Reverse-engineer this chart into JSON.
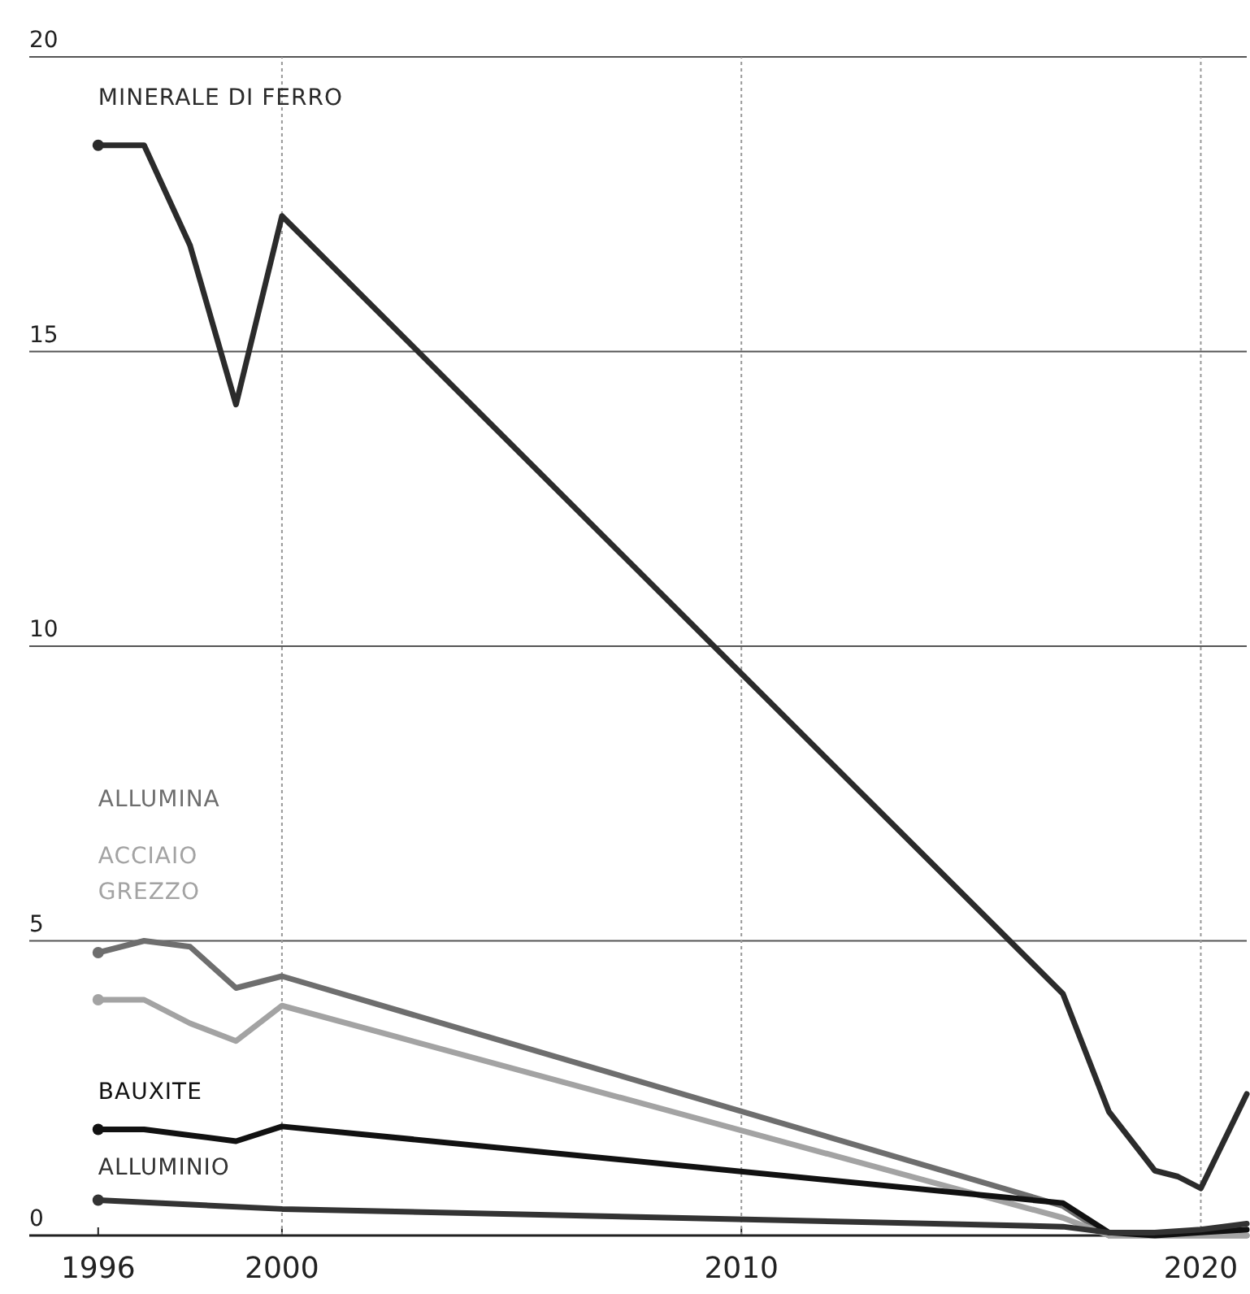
{
  "chart_data": {
    "type": "line",
    "xlim": [
      1994.5,
      2021
    ],
    "xticks": [
      1996,
      2000,
      2010,
      2020
    ],
    "ylim": [
      0,
      20
    ],
    "yticks": [
      0,
      5,
      10,
      15,
      20
    ],
    "grid": "y",
    "legend": false,
    "ref_lines": [
      {
        "axis": "x",
        "value": 2000,
        "line_style": "dotted"
      },
      {
        "axis": "x",
        "value": 2010,
        "line_style": "dotted"
      },
      {
        "axis": "x",
        "value": 2020,
        "line_style": "dotted"
      }
    ],
    "series": [
      {
        "name": "MINERALE DI FERRO",
        "color": "#2b2b2b",
        "x": [
          1996,
          1997,
          1998,
          1999,
          2000,
          2017,
          2018,
          2019,
          2019.5,
          2020,
          2021
        ],
        "values": [
          18.5,
          18.5,
          16.8,
          14.1,
          17.3,
          4.1,
          2.1,
          1.1,
          1.0,
          0.8,
          2.4
        ]
      },
      {
        "name": "ALLUMINA",
        "color": "#6e6e6e",
        "x": [
          1996,
          1997,
          1998,
          1999,
          2000,
          2017,
          2018,
          2019,
          2020,
          2021
        ],
        "values": [
          4.8,
          5.0,
          4.9,
          4.2,
          4.4,
          0.5,
          0,
          0,
          0,
          0
        ]
      },
      {
        "name": "ACCIAIO GREZZO",
        "color": "#a3a3a3",
        "x": [
          1996,
          1997,
          1998,
          1999,
          2000,
          2017,
          2018,
          2019,
          2020,
          2021
        ],
        "values": [
          4.0,
          4.0,
          3.6,
          3.3,
          3.9,
          0.3,
          0,
          0,
          0,
          0
        ]
      },
      {
        "name": "BAUXITE",
        "color": "#111111",
        "x": [
          1996,
          1997,
          1998,
          1999,
          2000,
          2017,
          2018,
          2019,
          2020,
          2021
        ],
        "values": [
          1.8,
          1.8,
          1.7,
          1.6,
          1.85,
          0.55,
          0.05,
          0,
          0.05,
          0.1
        ]
      },
      {
        "name": "ALLUMINIO",
        "color": "#333333",
        "x": [
          1996,
          2000,
          2017,
          2018,
          2019,
          2020,
          2021
        ],
        "values": [
          0.6,
          0.45,
          0.15,
          0.05,
          0.05,
          0.1,
          0.2
        ]
      }
    ]
  }
}
